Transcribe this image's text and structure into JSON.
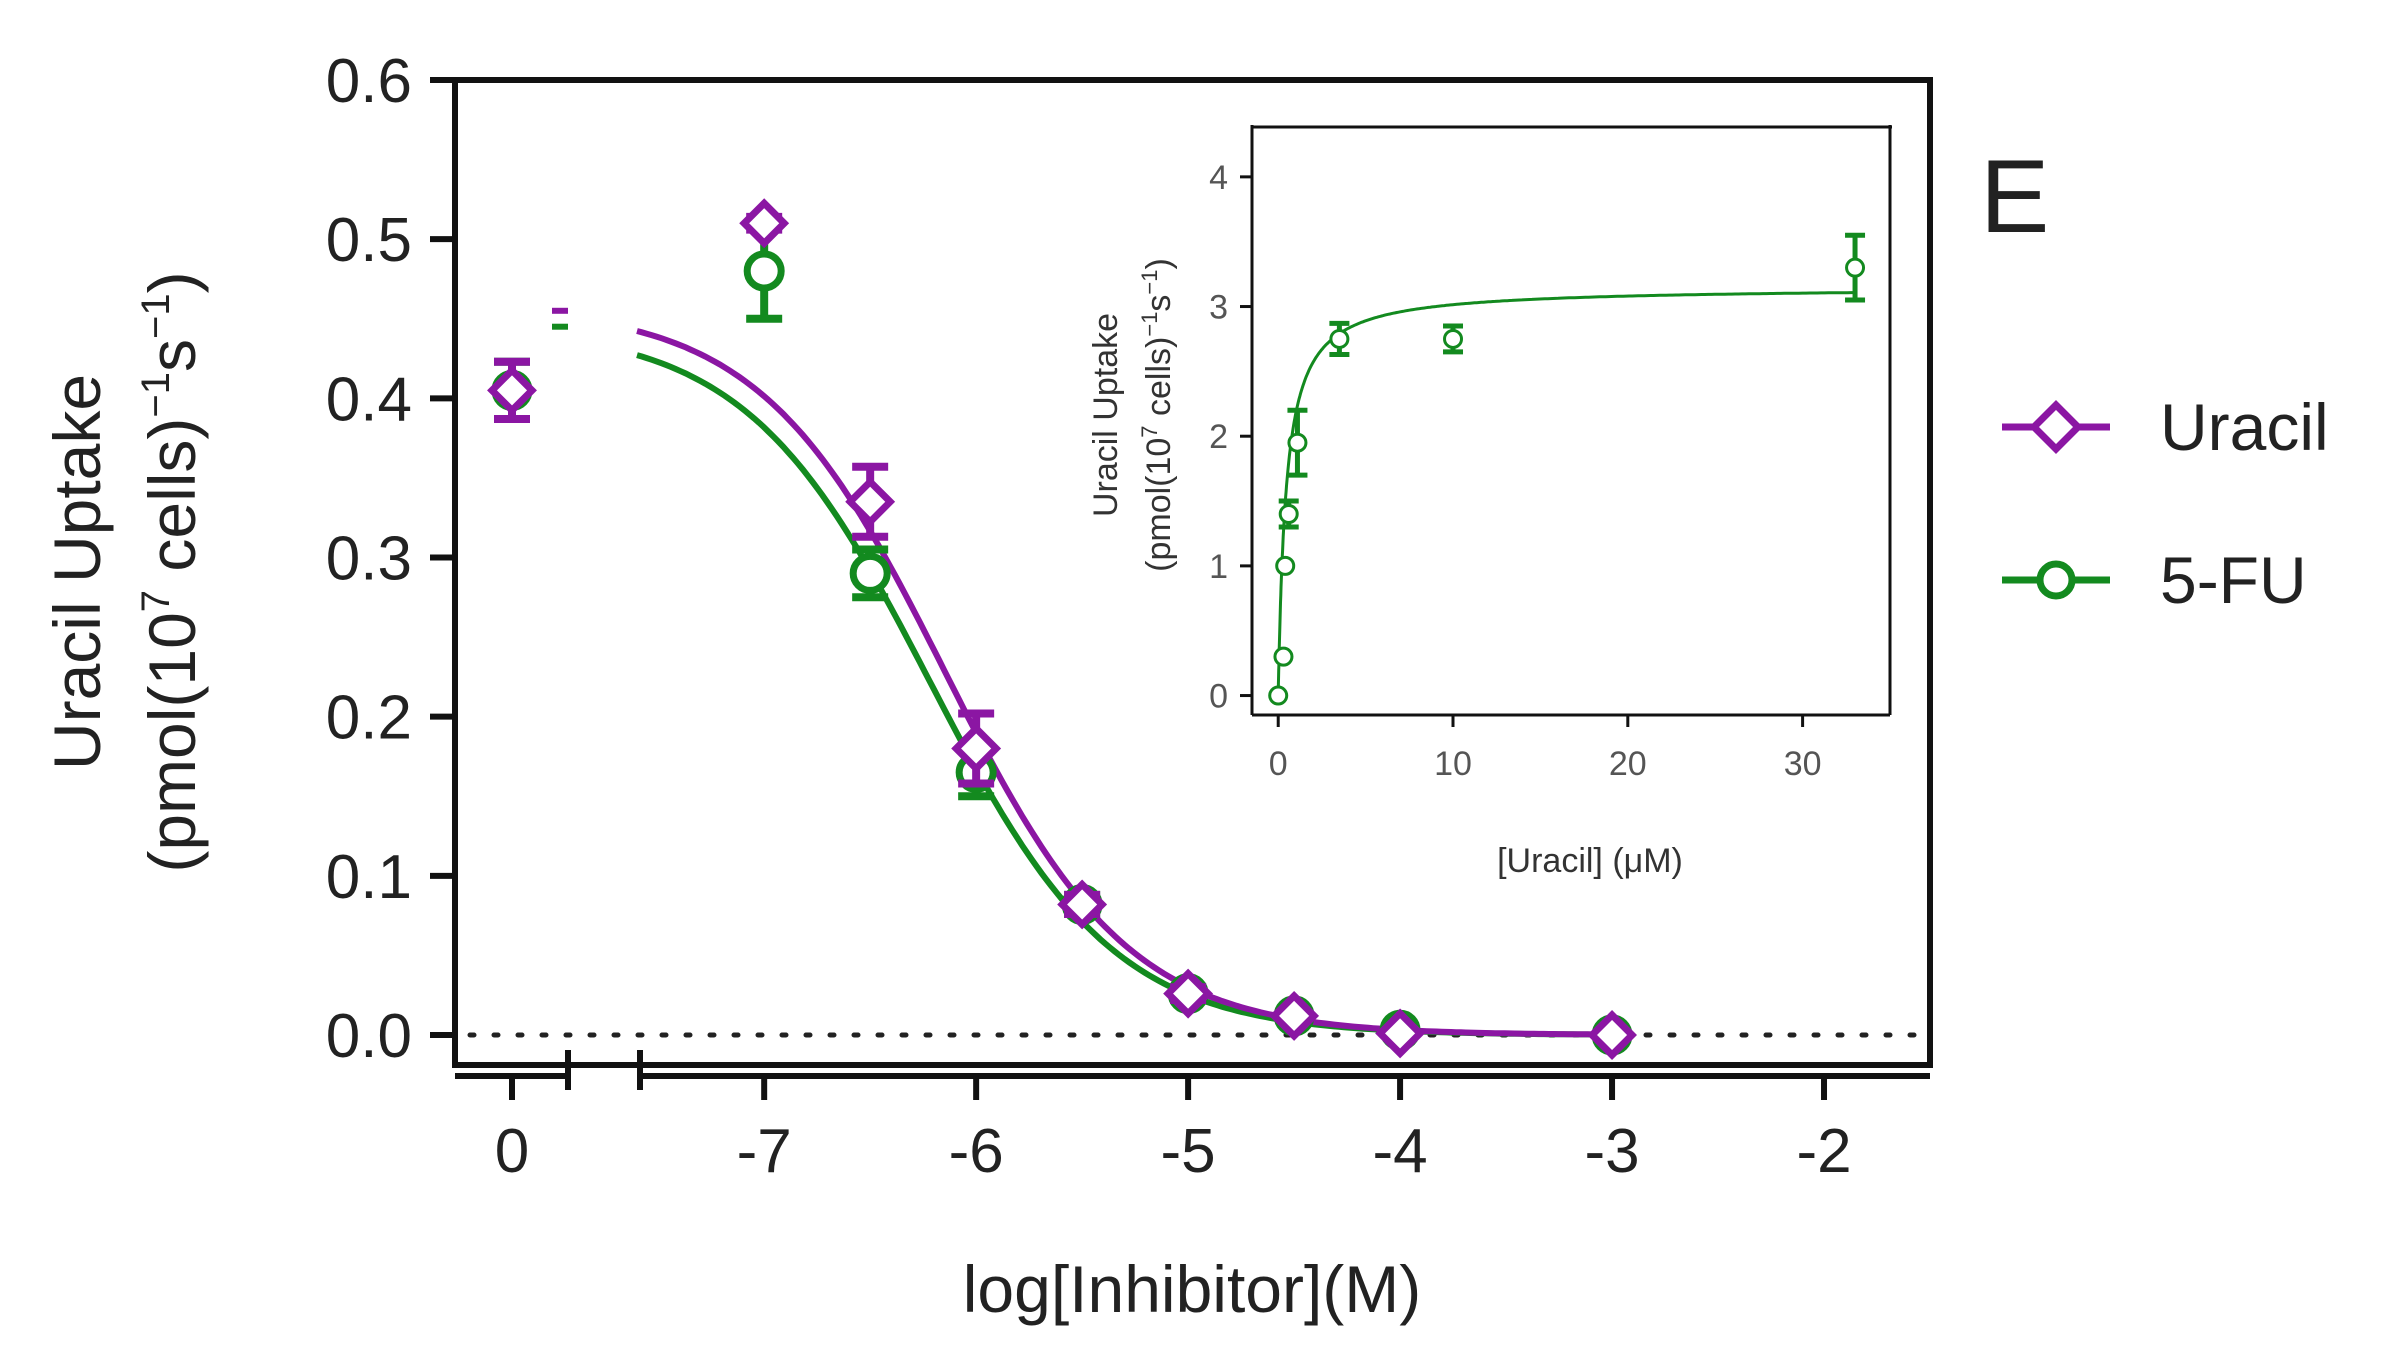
{
  "panel_label": "E",
  "legend": [
    {
      "label": "Uracil",
      "color": "#8b16a3",
      "marker": "diamond"
    },
    {
      "label": "5-FU",
      "color": "#138a1f",
      "marker": "circle"
    }
  ],
  "chart_data": [
    {
      "type": "scatter",
      "name": "main",
      "title": "",
      "xlabel": "log[Inhibitor](M)",
      "ylabel_line1": "Uracil Uptake",
      "ylabel_line2_parts": [
        "(pmol(10",
        "7",
        " cells)",
        "−1",
        "s",
        "−1",
        ")"
      ],
      "xlim": [
        -7.6,
        -1.5
      ],
      "ylim": [
        0,
        0.6
      ],
      "x_ticks": [
        -7,
        -6,
        -5,
        -4,
        -3,
        -2
      ],
      "x_tick_labels": [
        "-7",
        "-6",
        "-5",
        "-4",
        "-3",
        "-2"
      ],
      "x_control_tick_label": "0",
      "y_ticks": [
        0,
        0.1,
        0.2,
        0.3,
        0.4,
        0.5,
        0.6
      ],
      "y_tick_labels": [
        "0.0",
        "0.1",
        "0.2",
        "0.3",
        "0.4",
        "0.5",
        "0.6"
      ],
      "baseline_y": 0,
      "series": [
        {
          "name": "Uracil",
          "color": "#8b16a3",
          "marker": "diamond",
          "control": {
            "x": 0,
            "y": 0.405,
            "err": 0.018
          },
          "x": [
            -7,
            -6.5,
            -6,
            -5.5,
            -5,
            -4.5,
            -4,
            -3
          ],
          "y": [
            0.51,
            0.335,
            0.18,
            0.082,
            0.026,
            0.012,
            0.001,
            0.0
          ],
          "err": [
            0.004,
            0.022,
            0.022,
            0.006,
            0.004,
            0.003,
            0.002,
            0.001
          ],
          "fit": {
            "top": 0.458,
            "bottom": 0.0,
            "log_ic50": -6.15,
            "hill": -1.0
          },
          "control_fit_level": 0.455
        },
        {
          "name": "5-FU",
          "color": "#138a1f",
          "marker": "circle",
          "control": {
            "x": 0,
            "y": 0.405,
            "err": 0.018
          },
          "x": [
            -7,
            -6.5,
            -6,
            -5.5,
            -5,
            -4.5,
            -4,
            -3
          ],
          "y": [
            0.48,
            0.29,
            0.165,
            0.082,
            0.026,
            0.012,
            0.003,
            0.0
          ],
          "err": [
            0.03,
            0.015,
            0.015,
            0.006,
            0.004,
            0.003,
            0.002,
            0.001
          ],
          "fit": {
            "top": 0.445,
            "bottom": 0.0,
            "log_ic50": -6.22,
            "hill": -1.0
          },
          "control_fit_level": 0.445
        }
      ]
    },
    {
      "type": "scatter",
      "name": "inset",
      "title": "",
      "xlabel": "[Uracil] (μM)",
      "ylabel_line1": "Uracil Uptake",
      "ylabel_line2_parts": [
        "(pmol(10",
        "7",
        " cells)",
        "−1",
        "s",
        "−1",
        ")"
      ],
      "xlim": [
        -1.5,
        35
      ],
      "ylim": [
        -0.15,
        4.4
      ],
      "x_ticks": [
        0,
        10,
        20,
        30
      ],
      "x_tick_labels": [
        "0",
        "10",
        "20",
        "30"
      ],
      "y_ticks": [
        0,
        1,
        2,
        3,
        4
      ],
      "y_tick_labels": [
        "0",
        "1",
        "2",
        "3",
        "4"
      ],
      "series": [
        {
          "name": "5-FU",
          "color": "#138a1f",
          "marker": "circle",
          "x": [
            0,
            0.3,
            0.4,
            0.6,
            1.1,
            3.5,
            10,
            33
          ],
          "y": [
            0.0,
            0.3,
            1.0,
            1.4,
            1.95,
            2.75,
            2.75,
            3.3
          ],
          "err": [
            0.02,
            0.04,
            0.05,
            0.1,
            0.25,
            0.12,
            0.1,
            0.25
          ],
          "fit": {
            "vmax": 3.15,
            "km": 0.45
          }
        }
      ]
    }
  ]
}
